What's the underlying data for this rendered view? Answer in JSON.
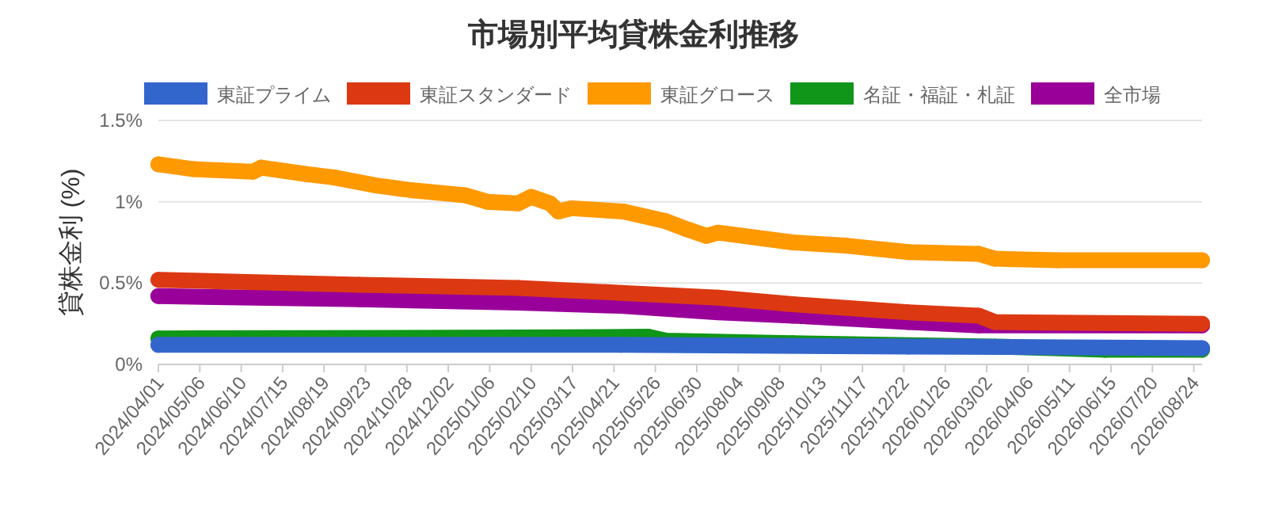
{
  "chart_data": {
    "type": "line",
    "title": "市場別平均貸株金利推移",
    "ylabel": "貸株金利 (%)",
    "xlim": [
      "2024-04-01",
      "2026-08-31"
    ],
    "xticks": [
      {
        "value": "2024-04-01",
        "label": "2024/04/01"
      },
      {
        "value": "2024-05-06",
        "label": "2024/05/06"
      },
      {
        "value": "2024-06-10",
        "label": "2024/06/10"
      },
      {
        "value": "2024-07-15",
        "label": "2024/07/15"
      },
      {
        "value": "2024-08-19",
        "label": "2024/08/19"
      },
      {
        "value": "2024-09-23",
        "label": "2024/09/23"
      },
      {
        "value": "2024-10-28",
        "label": "2024/10/28"
      },
      {
        "value": "2024-12-02",
        "label": "2024/12/02"
      },
      {
        "value": "2025-01-06",
        "label": "2025/01/06"
      },
      {
        "value": "2025-02-10",
        "label": "2025/02/10"
      },
      {
        "value": "2025-03-17",
        "label": "2025/03/17"
      },
      {
        "value": "2025-04-21",
        "label": "2025/04/21"
      },
      {
        "value": "2025-05-26",
        "label": "2025/05/26"
      },
      {
        "value": "2025-06-30",
        "label": "2025/06/30"
      },
      {
        "value": "2025-08-04",
        "label": "2025/08/04"
      },
      {
        "value": "2025-09-08",
        "label": "2025/09/08"
      },
      {
        "value": "2025-10-13",
        "label": "2025/10/13"
      },
      {
        "value": "2025-11-17",
        "label": "2025/11/17"
      },
      {
        "value": "2025-12-22",
        "label": "2025/12/22"
      },
      {
        "value": "2026-01-26",
        "label": "2026/01/26"
      },
      {
        "value": "2026-03-02",
        "label": "2026/03/02"
      },
      {
        "value": "2026-04-06",
        "label": "2026/04/06"
      },
      {
        "value": "2026-05-11",
        "label": "2026/05/11"
      },
      {
        "value": "2026-06-15",
        "label": "2026/06/15"
      },
      {
        "value": "2026-07-20",
        "label": "2026/07/20"
      },
      {
        "value": "2026-08-24",
        "label": "2026/08/24"
      }
    ],
    "ylim": [
      0,
      1.5
    ],
    "yticks": [
      {
        "value": 0,
        "label": "0%"
      },
      {
        "value": 0.5,
        "label": "0.5%"
      },
      {
        "value": 1,
        "label": "1%"
      },
      {
        "value": 1.5,
        "label": "1.5%"
      }
    ],
    "grid": "y",
    "legend": "top",
    "marker": "circle",
    "series": [
      {
        "name": "東証プライム",
        "color": "#3366cc",
        "x": [
          "2024-04-01",
          "2025-04-27",
          "2025-12-26",
          "2026-08-31"
        ],
        "values": [
          0.12,
          0.12,
          0.11,
          0.1
        ]
      },
      {
        "name": "東証スタンダード",
        "color": "#dc3912",
        "x": [
          "2024-04-01",
          "2024-09-18",
          "2025-01-30",
          "2025-04-27",
          "2025-07-18",
          "2025-09-19",
          "2025-12-26",
          "2026-02-23",
          "2026-03-09",
          "2026-08-31"
        ],
        "values": [
          0.52,
          0.49,
          0.47,
          0.44,
          0.41,
          0.37,
          0.32,
          0.3,
          0.26,
          0.25
        ]
      },
      {
        "name": "東証グロース",
        "color": "#ff9900",
        "x": [
          "2024-04-01",
          "2024-05-01",
          "2024-06-20",
          "2024-06-27",
          "2024-08-04",
          "2024-08-27",
          "2024-10-02",
          "2024-11-02",
          "2024-12-16",
          "2025-01-04",
          "2025-01-30",
          "2025-02-10",
          "2025-02-26",
          "2025-03-05",
          "2025-03-16",
          "2025-04-29",
          "2025-06-04",
          "2025-06-22",
          "2025-07-08",
          "2025-07-18",
          "2025-09-19",
          "2025-11-03",
          "2025-12-26",
          "2026-02-23",
          "2026-03-09",
          "2026-05-01",
          "2026-08-31"
        ],
        "values": [
          1.23,
          1.2,
          1.185,
          1.21,
          1.17,
          1.15,
          1.1,
          1.07,
          1.04,
          1.0,
          0.99,
          1.03,
          0.99,
          0.94,
          0.96,
          0.94,
          0.88,
          0.83,
          0.79,
          0.81,
          0.75,
          0.73,
          0.69,
          0.68,
          0.65,
          0.64,
          0.64
        ]
      },
      {
        "name": "名証・福証・札証",
        "color": "#109618",
        "x": [
          "2024-04-01",
          "2025-01-30",
          "2025-05-20",
          "2025-06-04",
          "2025-09-19",
          "2026-03-09",
          "2026-06-10",
          "2026-08-31"
        ],
        "values": [
          0.16,
          0.165,
          0.17,
          0.146,
          0.13,
          0.11,
          0.09,
          0.09
        ]
      },
      {
        "name": "全市場",
        "color": "#990099",
        "x": [
          "2024-04-01",
          "2024-09-18",
          "2025-01-30",
          "2025-04-27",
          "2025-07-18",
          "2025-09-19",
          "2025-12-26",
          "2026-02-23",
          "2026-08-31"
        ],
        "values": [
          0.42,
          0.4,
          0.38,
          0.36,
          0.32,
          0.3,
          0.26,
          0.24,
          0.24
        ]
      }
    ]
  }
}
